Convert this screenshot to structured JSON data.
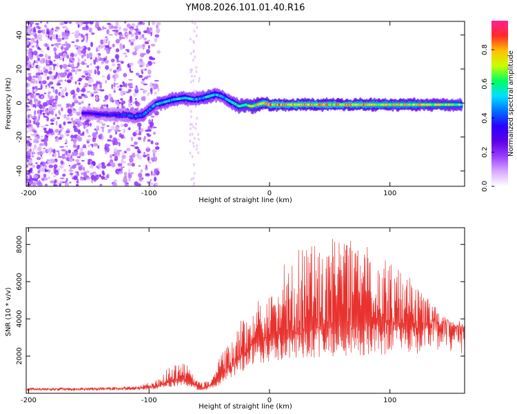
{
  "title": "YM08.2026.101.01.40.R16",
  "colors": {
    "snr_line": "#e8322e",
    "axis": "#000000",
    "colorbar_stops": [
      "#ffffff",
      "#d8a8ff",
      "#9a3cff",
      "#5a00e8",
      "#2a00ff",
      "#0070ff",
      "#00e0ff",
      "#00ff60",
      "#c8ff00",
      "#ffc000",
      "#ff2a2a",
      "#ff2090"
    ]
  },
  "chart_data": [
    {
      "type": "heatmap",
      "title": "",
      "xlabel": "Height of straight line (km)",
      "ylabel": "Frequency (Hz)",
      "xlim": [
        -202,
        162
      ],
      "ylim": [
        -49,
        48
      ],
      "x_ticks": [
        -200,
        -100,
        0,
        100
      ],
      "y_ticks": [
        -40,
        -20,
        0,
        20,
        40
      ],
      "x_tick_labels": [
        "-200",
        "-100",
        "0",
        "100"
      ],
      "y_tick_labels": [
        "-40",
        "-20",
        "0",
        "20",
        "40"
      ],
      "colorbar": {
        "label": "Normalized spectral amplitude",
        "range": [
          0,
          0.97
        ],
        "ticks": [
          0.0,
          0.2,
          0.4,
          0.6,
          0.8
        ],
        "tick_labels": [
          "0.0",
          "0.2",
          "0.4",
          "0.6",
          "0.8"
        ]
      },
      "ridge": {
        "x": [
          -150,
          -135,
          -120,
          -112,
          -105,
          -100,
          -95,
          -90,
          -80,
          -70,
          -62,
          -55,
          -50,
          -45,
          -40,
          -35,
          -30,
          -25,
          -20,
          -15,
          -10,
          -5,
          0,
          20,
          40,
          60,
          80,
          100,
          120,
          140,
          160
        ],
        "y": [
          -6,
          -7,
          -7,
          -8,
          -7,
          -4,
          -1,
          0,
          2,
          3,
          2,
          3,
          4,
          5,
          4,
          2,
          0,
          -2,
          -1,
          -2,
          -1,
          0,
          -1,
          -1,
          -1,
          -1,
          -1,
          -1,
          -1,
          -1,
          -1
        ],
        "amplitude": [
          0.35,
          0.4,
          0.45,
          0.5,
          0.55,
          0.5,
          0.55,
          0.6,
          0.6,
          0.65,
          0.55,
          0.6,
          0.7,
          0.6,
          0.55,
          0.6,
          0.65,
          0.7,
          0.75,
          0.8,
          0.85,
          0.9,
          0.9,
          0.9,
          0.9,
          0.9,
          0.88,
          0.85,
          0.85,
          0.8,
          0.75
        ]
      }
    },
    {
      "type": "line",
      "title": "",
      "xlabel": "Height of straight line (km)",
      "ylabel": "SNR (10 * v/v)",
      "xlim": [
        -202,
        162
      ],
      "ylim": [
        0,
        8900
      ],
      "x_ticks": [
        -200,
        -100,
        0,
        100
      ],
      "y_ticks": [
        2000,
        4000,
        6000,
        8000
      ],
      "x_tick_labels": [
        "-200",
        "-100",
        "0",
        "100"
      ],
      "y_tick_labels": [
        "2000",
        "4000",
        "6000",
        "8000"
      ],
      "envelope": {
        "x": [
          -202,
          -150,
          -110,
          -95,
          -85,
          -75,
          -65,
          -60,
          -55,
          -45,
          -35,
          -25,
          -15,
          -5,
          0,
          10,
          20,
          40,
          60,
          80,
          100,
          120,
          140,
          150,
          162
        ],
        "base": [
          200,
          220,
          260,
          350,
          500,
          700,
          600,
          300,
          250,
          500,
          1200,
          1800,
          2400,
          2700,
          2800,
          3000,
          3100,
          3200,
          3300,
          3400,
          3500,
          3500,
          3600,
          3600,
          3500
        ],
        "peak": [
          300,
          320,
          380,
          700,
          1300,
          1700,
          1500,
          700,
          500,
          1500,
          2800,
          3800,
          4800,
          5800,
          5200,
          6800,
          7600,
          8200,
          8600,
          8000,
          7200,
          6000,
          4500,
          3900,
          3600
        ]
      }
    }
  ]
}
